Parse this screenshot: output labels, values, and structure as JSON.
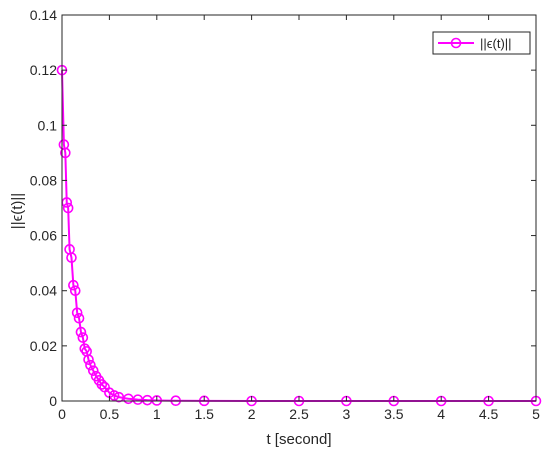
{
  "chart_data": {
    "type": "line",
    "xlabel": "t  [second]",
    "ylabel": "||ϵ(t)||",
    "xlim": [
      0,
      5
    ],
    "ylim": [
      0,
      0.14
    ],
    "xticks": [
      0,
      0.5,
      1,
      1.5,
      2,
      2.5,
      3,
      3.5,
      4,
      4.5,
      5
    ],
    "xtick_labels": [
      "0",
      "0.5",
      "1",
      "1.5",
      "2",
      "2.5",
      "3",
      "3.5",
      "4",
      "4.5",
      "5"
    ],
    "yticks": [
      0,
      0.02,
      0.04,
      0.06,
      0.08,
      0.1,
      0.12,
      0.14
    ],
    "ytick_labels": [
      "0",
      "0.02",
      "0.04",
      "0.06",
      "0.08",
      "0.1",
      "0.12",
      "0.14"
    ],
    "grid": false,
    "legend_position": "top-right",
    "series": [
      {
        "name": "||ϵ(t)||",
        "color": "#ff00ff",
        "marker": "circle-open",
        "x": [
          0.0,
          0.02,
          0.035,
          0.05,
          0.065,
          0.08,
          0.1,
          0.12,
          0.14,
          0.16,
          0.18,
          0.2,
          0.22,
          0.24,
          0.26,
          0.28,
          0.3,
          0.33,
          0.36,
          0.39,
          0.42,
          0.45,
          0.5,
          0.55,
          0.6,
          0.7,
          0.8,
          0.9,
          1.0,
          1.2,
          1.5,
          2.0,
          2.5,
          3.0,
          3.5,
          4.0,
          4.5,
          5.0
        ],
        "y": [
          0.12,
          0.093,
          0.09,
          0.072,
          0.07,
          0.055,
          0.052,
          0.042,
          0.04,
          0.032,
          0.03,
          0.025,
          0.023,
          0.019,
          0.018,
          0.015,
          0.013,
          0.011,
          0.009,
          0.0075,
          0.006,
          0.005,
          0.003,
          0.002,
          0.0014,
          0.0008,
          0.0005,
          0.0003,
          0.0002,
          0.0001,
          5e-05,
          0.0,
          0.0,
          0.0,
          0.0,
          0.0,
          0.0,
          0.0
        ]
      }
    ]
  }
}
